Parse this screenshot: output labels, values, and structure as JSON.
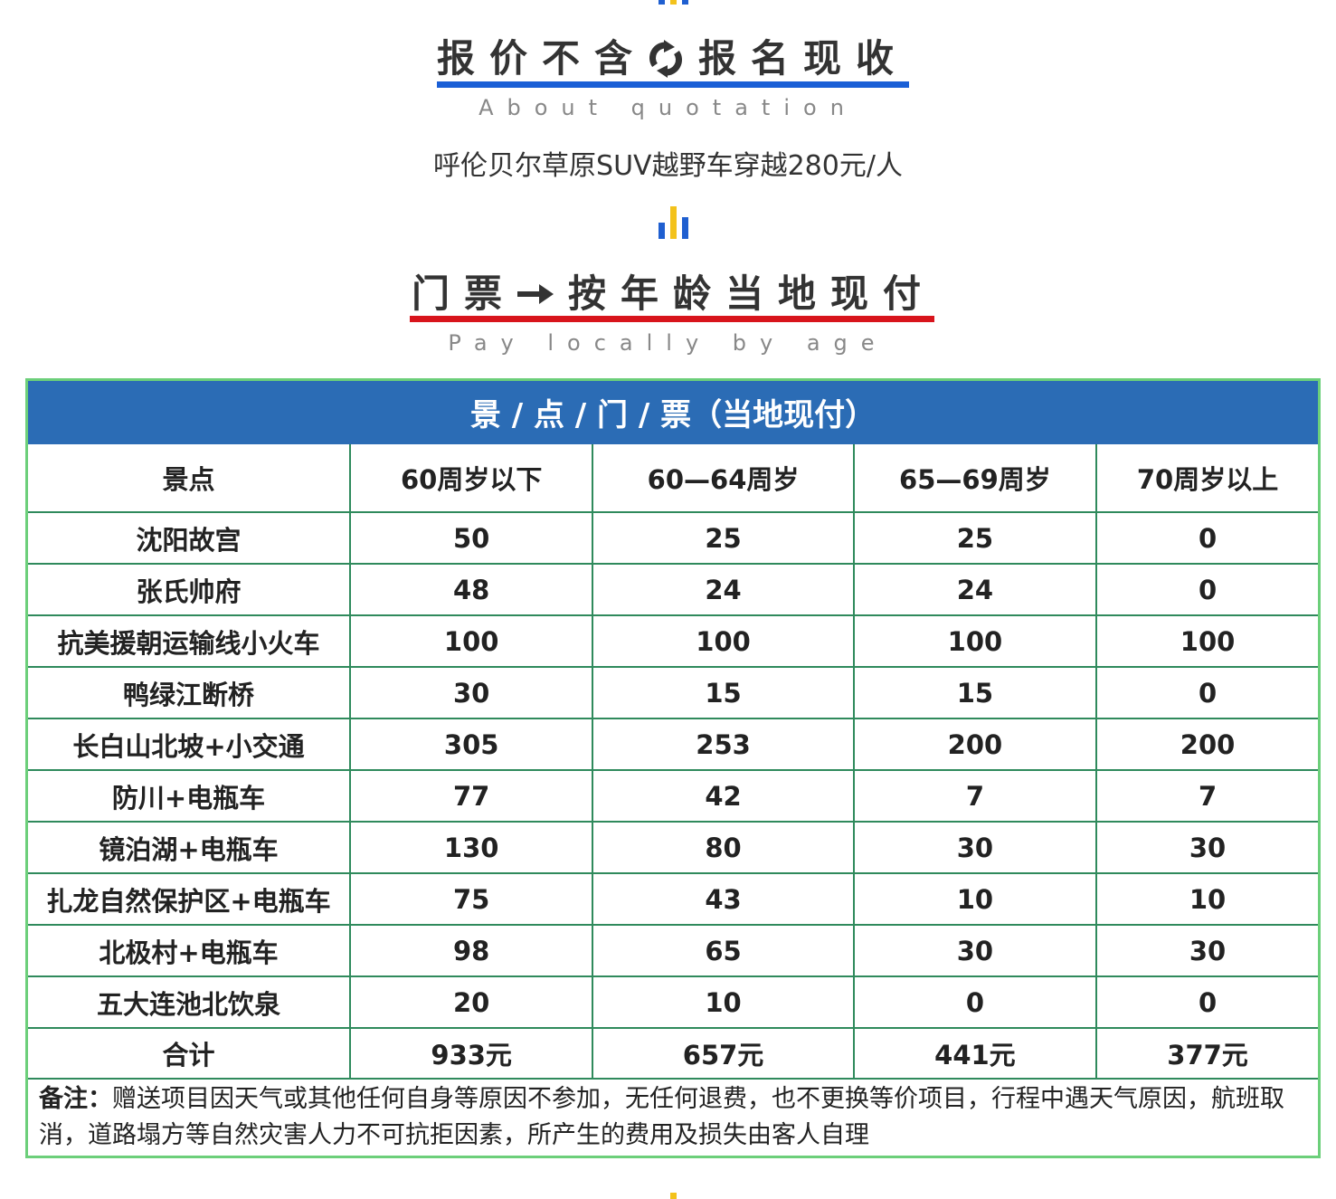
{
  "header": {
    "title_left": "报价不含",
    "title_right": "报名现收",
    "subtitle": "About quotation",
    "price_line": "呼伦贝尔草原SUV越野车穿越280元/人"
  },
  "section": {
    "title_left": "门票",
    "title_right": "按年龄当地现付",
    "subtitle": "Pay locally by age"
  },
  "table": {
    "caption": "景 / 点 / 门 / 票（当地现付）",
    "columns": [
      "景点",
      "60周岁以下",
      "60—64周岁",
      "65—69周岁",
      "70周岁以上"
    ],
    "rows": [
      [
        "沈阳故宫",
        50,
        25,
        25,
        0
      ],
      [
        "张氏帅府",
        48,
        24,
        24,
        0
      ],
      [
        "抗美援朝运输线小火车",
        100,
        100,
        100,
        100
      ],
      [
        "鸭绿江断桥",
        30,
        15,
        15,
        0
      ],
      [
        "长白山北坡+小交通",
        305,
        253,
        200,
        200
      ],
      [
        "防川+电瓶车",
        77,
        42,
        7,
        7
      ],
      [
        "镜泊湖+电瓶车",
        130,
        80,
        30,
        30
      ],
      [
        "扎龙自然保护区+电瓶车",
        75,
        43,
        10,
        10
      ],
      [
        "北极村+电瓶车",
        98,
        65,
        30,
        30
      ],
      [
        "五大连池北饮泉",
        20,
        10,
        0,
        0
      ]
    ],
    "total": [
      "合计",
      "933元",
      "657元",
      "441元",
      "377元"
    ],
    "note_label": "备注：",
    "note": "赠送项目因天气或其他任何自身等原因不参加，无任何退费，也不更换等价项目，行程中遇天气原因，航班取消，道路塌方等自然灾害人力不可抗拒因素，所产生的费用及损失由客人自理"
  }
}
